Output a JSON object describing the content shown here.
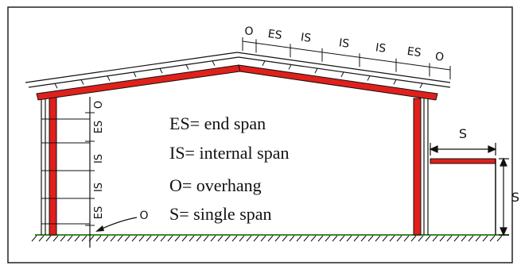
{
  "diagram": {
    "legend": [
      {
        "id": "es",
        "text": "ES= end span"
      },
      {
        "id": "is",
        "text": "IS= internal span"
      },
      {
        "id": "o",
        "text": "O= overhang"
      },
      {
        "id": "s",
        "text": "S= single span"
      }
    ],
    "roof_labels": [
      "O",
      "ES",
      "IS",
      "IS",
      "IS",
      "ES",
      "O"
    ],
    "wall_labels": [
      "O",
      "ES",
      "IS",
      "IS",
      "ES"
    ],
    "base_overhang_label": "O",
    "lean_to_span_label": "S",
    "lean_to_height_label": "S",
    "colors": {
      "frame_red": "#e0201b",
      "line": "#111111",
      "ground_green": "#3a8a2a"
    }
  }
}
